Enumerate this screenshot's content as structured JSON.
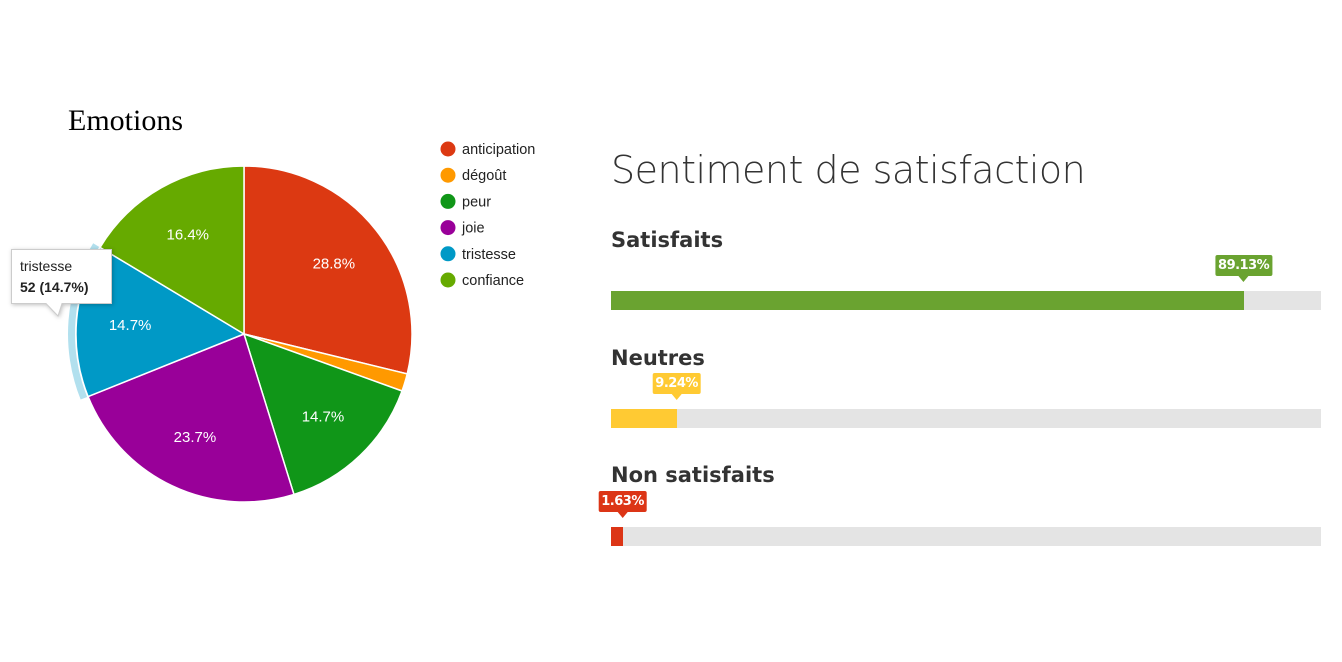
{
  "chart_data": [
    {
      "type": "pie",
      "title": "Emotions",
      "categories": [
        "anticipation",
        "dégoût",
        "peur",
        "joie",
        "tristesse",
        "confiance"
      ],
      "values": [
        102,
        6,
        52,
        84,
        52,
        58
      ],
      "labels": [
        "28.8%",
        "",
        "14.7%",
        "23.7%",
        "14.7%",
        "16.4%"
      ],
      "colors": [
        "#dc3912",
        "#ff9900",
        "#109618",
        "#990099",
        "#0099c6",
        "#66aa00"
      ],
      "legend": "right",
      "tooltip": {
        "category": "tristesse",
        "value_text": "52 (14.7%)"
      }
    },
    {
      "type": "bar",
      "title": "Sentiment de satisfaction",
      "categories": [
        "Satisfaits",
        "Neutres",
        "Non satisfaits"
      ],
      "values": [
        89.13,
        9.24,
        1.63
      ],
      "value_labels": [
        "89.13%",
        "9.24%",
        "1.63%"
      ],
      "colors": [
        "#6aa330",
        "#ffca33",
        "#dc3516"
      ],
      "ylim": [
        0,
        100
      ]
    }
  ]
}
